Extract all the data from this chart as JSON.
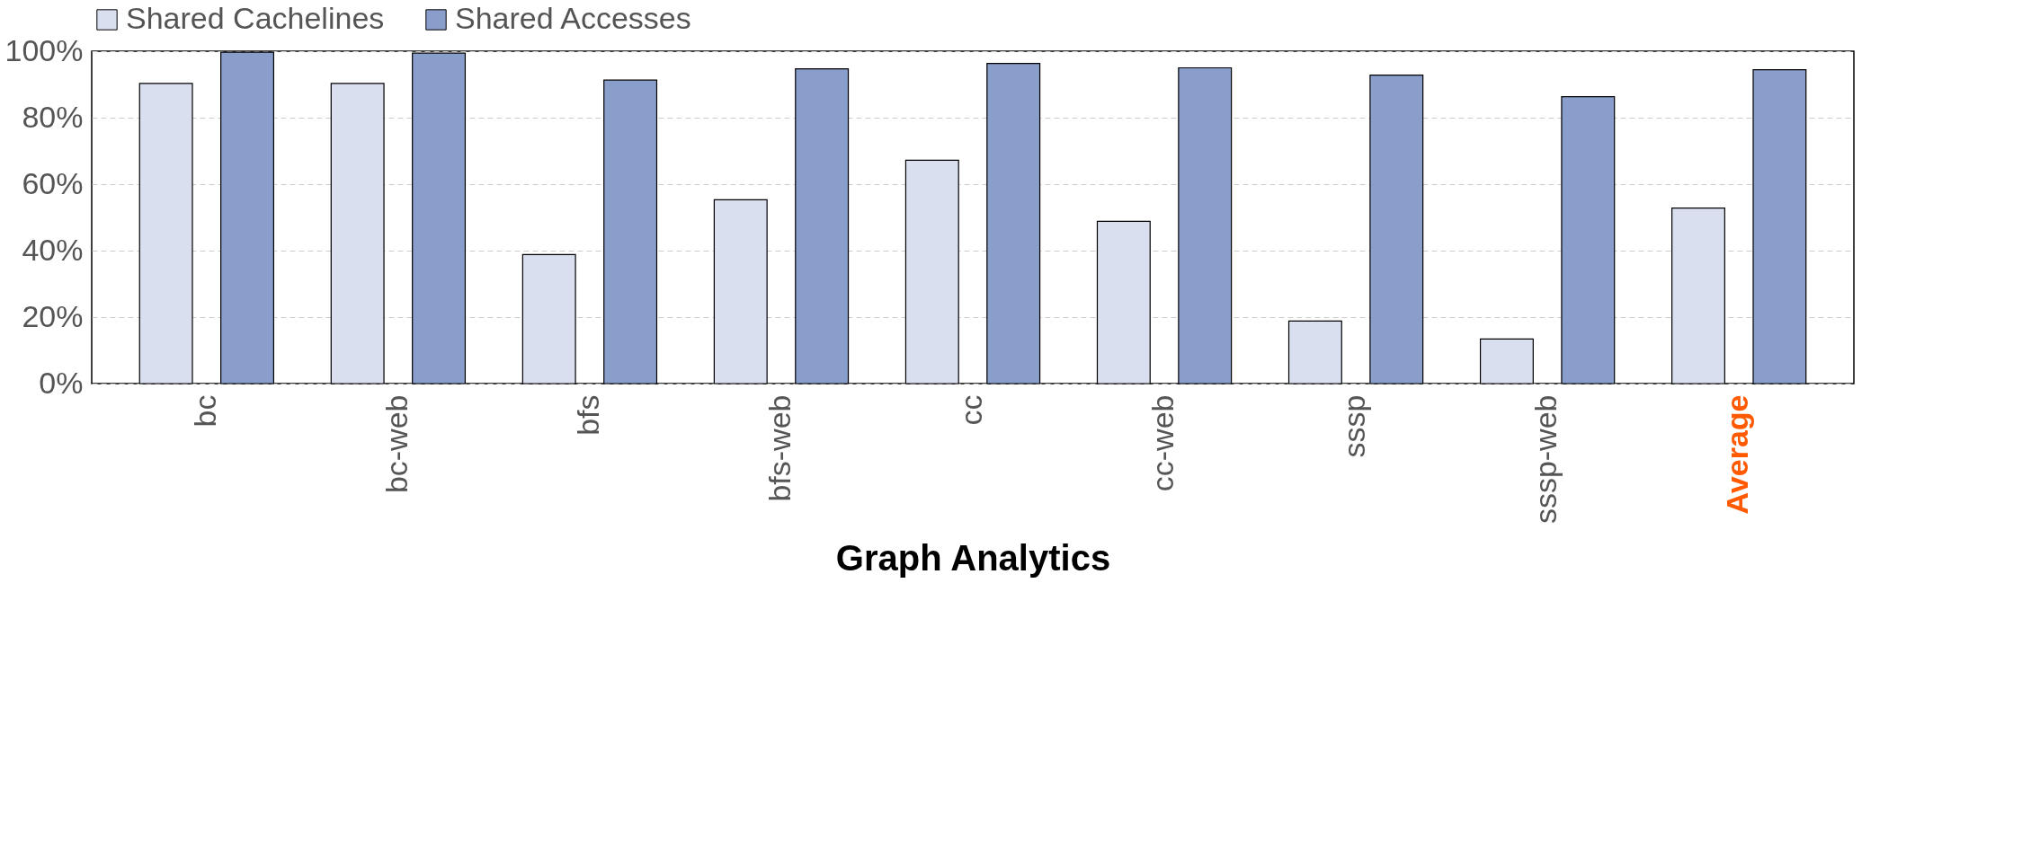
{
  "chart_data": {
    "type": "bar",
    "xlabel": "Graph Analytics",
    "categories": [
      "bc",
      "bc-web",
      "bfs",
      "bfs-web",
      "cc",
      "cc-web",
      "sssp",
      "sssp-web",
      "Average"
    ],
    "series": [
      {
        "name": "Shared Cachelines",
        "color": "#d9dfee",
        "values": [
          90.3,
          90.3,
          38.8,
          55.3,
          67.2,
          48.8,
          18.8,
          13.4,
          52.8
        ]
      },
      {
        "name": "Shared Accesses",
        "color": "#8a9ecb",
        "values": [
          99.7,
          99.4,
          91.3,
          94.7,
          96.3,
          95.0,
          92.8,
          86.3,
          94.4
        ]
      }
    ],
    "ylim": [
      0,
      100
    ],
    "yticks": [
      {
        "value": 0,
        "label": "0%"
      },
      {
        "value": 20,
        "label": "20%"
      },
      {
        "value": 40,
        "label": "40%"
      },
      {
        "value": 60,
        "label": "60%"
      },
      {
        "value": 80,
        "label": "80%"
      },
      {
        "value": 100,
        "label": "100%"
      }
    ],
    "grid": "y",
    "legend": "top"
  }
}
